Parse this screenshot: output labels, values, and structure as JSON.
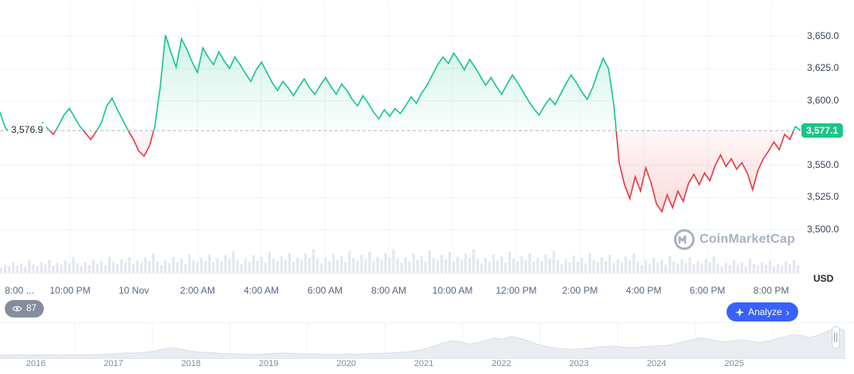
{
  "chart": {
    "baseline_label": "3,576.9",
    "current_price_label": "3,577.1",
    "currency_label": "USD"
  },
  "overlay": {
    "watchers": "87",
    "analyze_label": "Analyze",
    "analyze_chevron": "›"
  },
  "watermark": {
    "text": "CoinMarketCap"
  },
  "chart_data": {
    "type": "line",
    "title": "Intraday price chart with baseline (green above / red below)",
    "baseline": 3576.9,
    "current_price": 3577.1,
    "ylim": [
      3493,
      3672
    ],
    "grid": true,
    "y_ticks": [
      {
        "value": 3650,
        "label": "3,650.0"
      },
      {
        "value": 3625,
        "label": "3,625.0"
      },
      {
        "value": 3600,
        "label": "3,600.0"
      },
      {
        "value": 3550,
        "label": "3,550.0"
      },
      {
        "value": 3525,
        "label": "3,525.0"
      },
      {
        "value": 3500,
        "label": "3,500.0"
      }
    ],
    "x_labels": [
      "8:00 ...",
      "10:00 PM",
      "10 Nov",
      "2:00 AM",
      "4:00 AM",
      "6:00 AM",
      "8:00 AM",
      "10:00 AM",
      "12:00 PM",
      "2:00 PM",
      "4:00 PM",
      "6:00 PM",
      "8:00 PM"
    ],
    "values": [
      3591,
      3579,
      3575,
      3581,
      3576,
      3573,
      3579,
      3576,
      3583,
      3578,
      3574,
      3581,
      3589,
      3594,
      3587,
      3580,
      3575,
      3570,
      3576,
      3583,
      3596,
      3602,
      3593,
      3585,
      3577,
      3570,
      3561,
      3557,
      3565,
      3580,
      3610,
      3651,
      3638,
      3626,
      3648,
      3640,
      3630,
      3622,
      3641,
      3634,
      3628,
      3638,
      3631,
      3625,
      3634,
      3628,
      3621,
      3615,
      3624,
      3630,
      3622,
      3614,
      3608,
      3615,
      3610,
      3604,
      3611,
      3617,
      3610,
      3605,
      3612,
      3618,
      3611,
      3605,
      3613,
      3608,
      3601,
      3596,
      3604,
      3598,
      3591,
      3586,
      3593,
      3588,
      3594,
      3590,
      3596,
      3603,
      3598,
      3606,
      3612,
      3620,
      3628,
      3634,
      3629,
      3637,
      3631,
      3624,
      3632,
      3626,
      3619,
      3612,
      3618,
      3611,
      3605,
      3613,
      3620,
      3614,
      3607,
      3600,
      3594,
      3589,
      3596,
      3602,
      3597,
      3605,
      3613,
      3620,
      3614,
      3607,
      3601,
      3610,
      3622,
      3633,
      3625,
      3597,
      3552,
      3535,
      3524,
      3541,
      3530,
      3548,
      3536,
      3520,
      3514,
      3527,
      3517,
      3530,
      3522,
      3536,
      3543,
      3535,
      3544,
      3538,
      3550,
      3558,
      3549,
      3555,
      3547,
      3552,
      3544,
      3531,
      3546,
      3555,
      3561,
      3568,
      3562,
      3574,
      3570,
      3580,
      3577.1
    ],
    "volume_pattern": [
      0.32,
      0.5,
      0.38,
      0.62,
      0.42,
      0.55,
      0.35,
      0.72,
      0.48,
      0.4,
      0.58,
      0.44,
      0.68,
      0.38,
      0.52,
      0.42,
      0.64,
      0.5,
      0.78,
      0.46
    ],
    "colors": {
      "up": "#16c784",
      "down": "#ea3943",
      "badge": "#16c784",
      "grid": "#f0f2f6",
      "vgrid": "#f2f4f7",
      "volume": "#e3e7ed",
      "baseline": "#aeb7c6",
      "analyze_blue": "#3861fb"
    },
    "timeline": {
      "years": [
        "2016",
        "2017",
        "2018",
        "2019",
        "2020",
        "2021",
        "2022",
        "2023",
        "2024",
        "2025"
      ],
      "values": [
        0.02,
        0.02,
        0.03,
        0.02,
        0.02,
        0.03,
        0.03,
        0.02,
        0.03,
        0.03,
        0.03,
        0.04,
        0.05,
        0.06,
        0.08,
        0.1,
        0.09,
        0.12,
        0.15,
        0.22,
        0.28,
        0.24,
        0.18,
        0.14,
        0.12,
        0.1,
        0.08,
        0.07,
        0.06,
        0.05,
        0.05,
        0.06,
        0.08,
        0.09,
        0.08,
        0.07,
        0.06,
        0.06,
        0.05,
        0.05,
        0.05,
        0.06,
        0.05,
        0.07,
        0.08,
        0.09,
        0.1,
        0.12,
        0.14,
        0.18,
        0.25,
        0.35,
        0.45,
        0.52,
        0.48,
        0.4,
        0.45,
        0.55,
        0.62,
        0.58,
        0.68,
        0.6,
        0.5,
        0.4,
        0.32,
        0.28,
        0.24,
        0.22,
        0.24,
        0.26,
        0.3,
        0.32,
        0.34,
        0.3,
        0.28,
        0.3,
        0.32,
        0.34,
        0.36,
        0.4,
        0.48,
        0.55,
        0.62,
        0.58,
        0.52,
        0.48,
        0.52,
        0.56,
        0.5,
        0.46,
        0.5,
        0.58,
        0.66,
        0.74,
        0.7,
        0.64,
        0.72,
        0.85,
        0.95,
        0.9
      ]
    }
  }
}
